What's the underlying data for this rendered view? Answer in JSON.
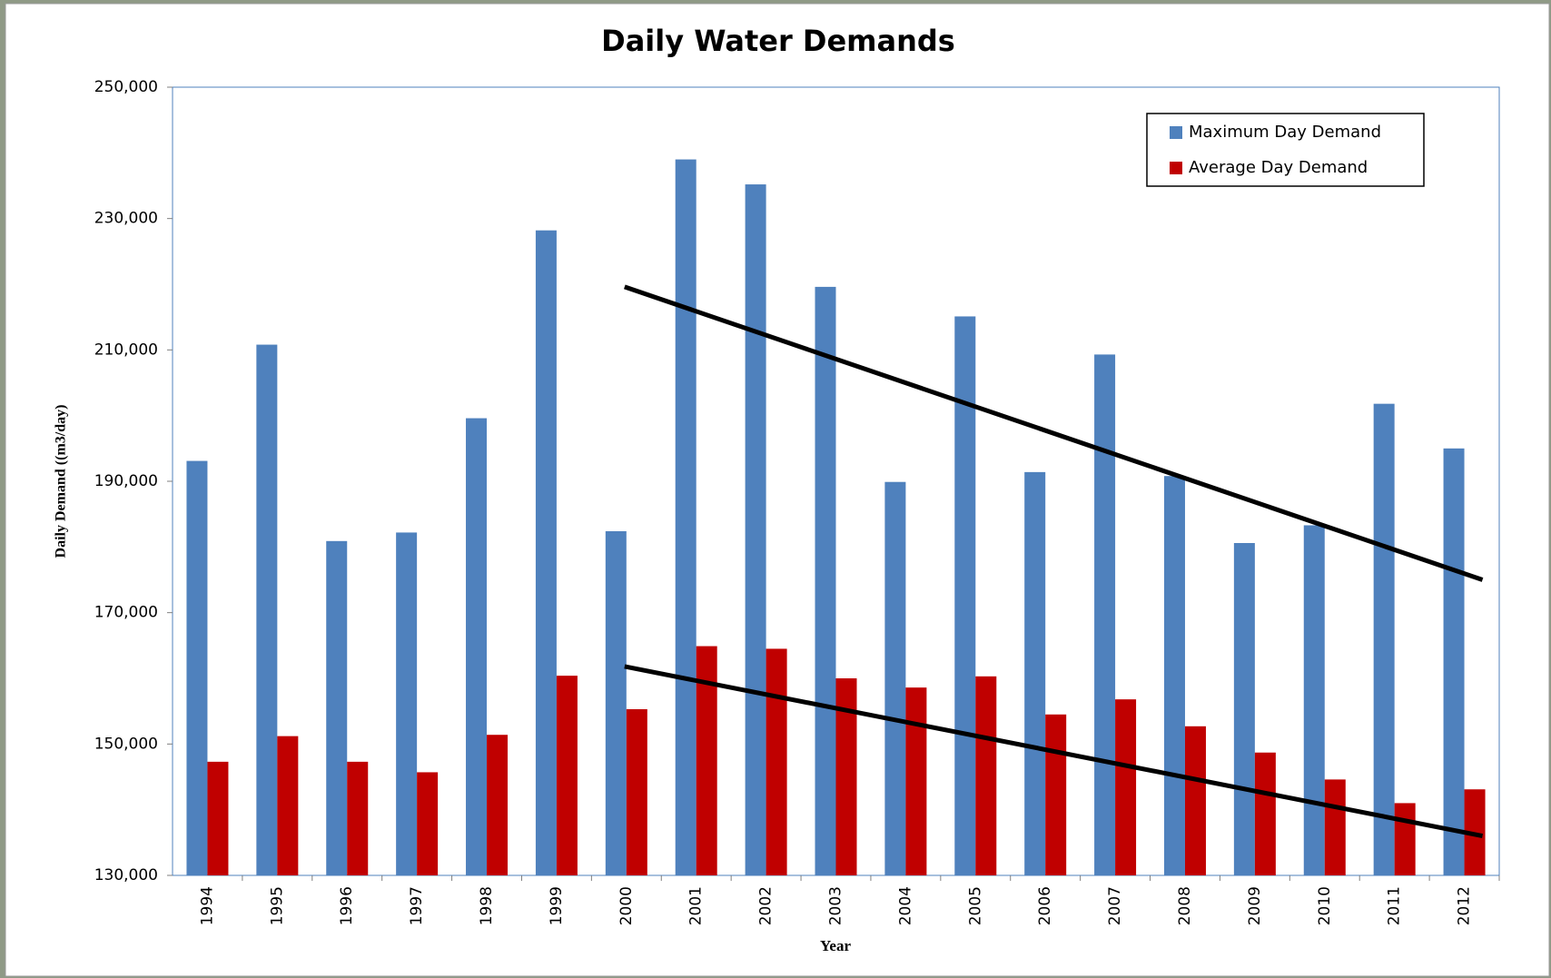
{
  "chart_data": {
    "type": "bar",
    "title": "Daily Water Demands",
    "x_label": "Year",
    "y_label": "Daily Demand ((m3/day)",
    "categories": [
      "1994",
      "1995",
      "1996",
      "1997",
      "1998",
      "1999",
      "2000",
      "2001",
      "2002",
      "2003",
      "2004",
      "2005",
      "2006",
      "2007",
      "2008",
      "2009",
      "2010",
      "2011",
      "2012"
    ],
    "series": [
      {
        "name": "Maximum Day Demand",
        "color": "#4f81bd",
        "values": [
          193100,
          210800,
          180900,
          182200,
          199600,
          228200,
          182400,
          239000,
          235200,
          219600,
          189900,
          215100,
          191400,
          209300,
          190800,
          180600,
          183300,
          201800,
          195000
        ]
      },
      {
        "name": "Average Day Demand",
        "color": "#c00000",
        "values": [
          147300,
          151200,
          147300,
          145700,
          151400,
          160400,
          155300,
          164900,
          164500,
          160000,
          158600,
          160300,
          154500,
          156800,
          152700,
          148700,
          144600,
          141000,
          143100
        ]
      }
    ],
    "trendlines": [
      {
        "x": [
          "2000",
          "2012"
        ],
        "values": [
          219600,
          175000
        ],
        "color": "#000000"
      },
      {
        "x": [
          "2000",
          "2012"
        ],
        "values": [
          161800,
          136000
        ],
        "color": "#000000"
      }
    ],
    "ylim": [
      130000,
      250000
    ],
    "yticks": [
      {
        "value": 130000,
        "label": "130,000"
      },
      {
        "value": 150000,
        "label": "150,000"
      },
      {
        "value": 170000,
        "label": "170,000"
      },
      {
        "value": 190000,
        "label": "190,000"
      },
      {
        "value": 210000,
        "label": "210,000"
      },
      {
        "value": 230000,
        "label": "230,000"
      },
      {
        "value": 250000,
        "label": "250,000"
      }
    ],
    "grid": false,
    "legend": "upper right"
  }
}
